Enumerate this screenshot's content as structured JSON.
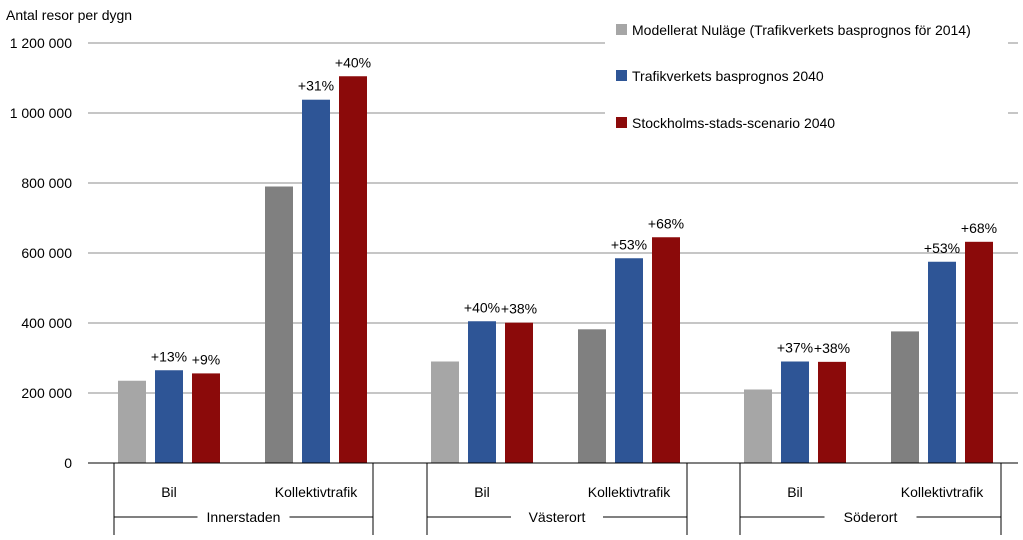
{
  "chart_data": {
    "type": "bar",
    "ylabel": "Antal resor per dygn",
    "ylim": [
      0,
      1200000
    ],
    "yticks": [
      0,
      200000,
      400000,
      600000,
      800000,
      1000000,
      1200000
    ],
    "ytick_labels": [
      "0",
      "200 000",
      "400 000",
      "600 000",
      "800 000",
      "1 000 000",
      "1 200 000"
    ],
    "grid": true,
    "legend_position": "top-right",
    "groups": [
      {
        "name": "Innerstaden",
        "categories": [
          "Bil",
          "Kollektivtrafik"
        ]
      },
      {
        "name": "Västerort",
        "categories": [
          "Bil",
          "Kollektivtrafik"
        ]
      },
      {
        "name": "Söderort",
        "categories": [
          "Bil",
          "Kollektivtrafik"
        ]
      }
    ],
    "categories": [
      "Innerstaden – Bil",
      "Innerstaden – Kollektivtrafik",
      "Västerort – Bil",
      "Västerort – Kollektivtrafik",
      "Söderort – Bil",
      "Söderort – Kollektivtrafik"
    ],
    "series": [
      {
        "name": "Modellerat Nuläge (Trafikverkets basprognos för 2014)",
        "values": [
          235000,
          790000,
          290000,
          382000,
          210000,
          376000
        ],
        "labels": [
          "",
          "",
          "",
          "",
          "",
          ""
        ]
      },
      {
        "name": "Trafikverkets basprognos 2040",
        "values": [
          265000,
          1038000,
          405000,
          585000,
          290000,
          575000
        ],
        "labels": [
          "+13%",
          "+31%",
          "+40%",
          "+53%",
          "+37%",
          "+53%"
        ]
      },
      {
        "name": "Stockholms-stads-scenario 2040",
        "values": [
          256000,
          1105000,
          401000,
          645000,
          289000,
          632000
        ],
        "labels": [
          "+9%",
          "+40%",
          "+38%",
          "+68%",
          "+38%",
          "+68%"
        ]
      }
    ],
    "colors": {
      "series": [
        "#a6a6a6",
        "#2e5596",
        "#8b0a0a"
      ],
      "series_kollektiv_first": "#808080",
      "grid": "#8c8c8c",
      "axis": "#000000"
    }
  }
}
